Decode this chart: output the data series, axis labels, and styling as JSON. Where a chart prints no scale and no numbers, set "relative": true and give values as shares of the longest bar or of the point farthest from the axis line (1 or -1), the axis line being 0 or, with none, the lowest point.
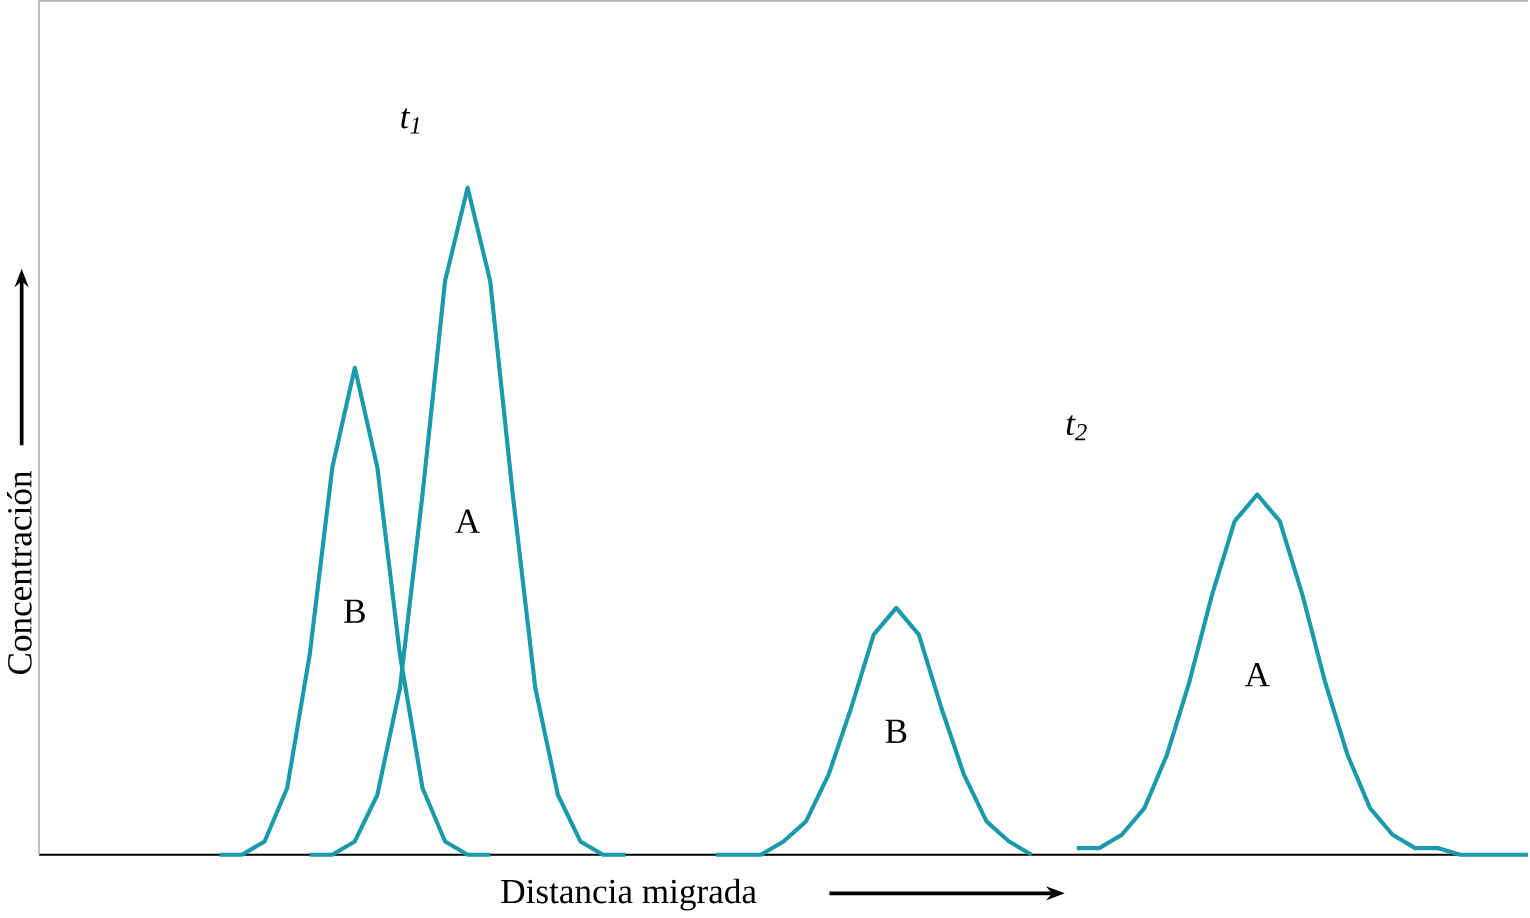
{
  "chart_data": {
    "type": "line",
    "relative": true,
    "xlabel": "Distancia migrada",
    "ylabel": "Concentración",
    "tick_labels": false,
    "marker": "none",
    "line_style": "solid",
    "annotations": [
      "t$_{1}$",
      "t$_{2}$"
    ],
    "categories": [
      null,
      null,
      null,
      null,
      null,
      null,
      null,
      null,
      null,
      null,
      null,
      null,
      null,
      null,
      null,
      null,
      null,
      null,
      null,
      null,
      null,
      null,
      null,
      null,
      null,
      null,
      null,
      null,
      null,
      null,
      null,
      null,
      null,
      null,
      null,
      null,
      null,
      null,
      null,
      null,
      null,
      null,
      null,
      null,
      null,
      null,
      null,
      null,
      null,
      null,
      null,
      null,
      null,
      null,
      null,
      null,
      null,
      null,
      null,
      null,
      null,
      null,
      null,
      null,
      null,
      null,
      null
    ],
    "series": [
      {
        "name": "B",
        "color": "#1a9aaa",
        "values": [
          null,
          null,
          null,
          null,
          null,
          null,
          null,
          null,
          0,
          0,
          0.02,
          0.1,
          0.3,
          0.58,
          0.73,
          0.58,
          0.3,
          0.1,
          0.02,
          0,
          0,
          null,
          null,
          null,
          null,
          null,
          null,
          null,
          null,
          null,
          null,
          null,
          null,
          null,
          null,
          null,
          null,
          null,
          null,
          null,
          null,
          null,
          null,
          null,
          null,
          null,
          null,
          null,
          null,
          null,
          null,
          null,
          null,
          null,
          null,
          null,
          null,
          null,
          null,
          null,
          null,
          null,
          null,
          null,
          null,
          null,
          null
        ]
      },
      {
        "name": "A",
        "color": "#1a9aaa",
        "values": [
          null,
          null,
          null,
          null,
          null,
          null,
          null,
          null,
          null,
          null,
          null,
          null,
          0,
          0,
          0.02,
          0.09,
          0.25,
          0.54,
          0.86,
          1,
          0.86,
          0.54,
          0.25,
          0.09,
          0.02,
          0,
          0,
          null,
          null,
          null,
          null,
          null,
          null,
          null,
          null,
          null,
          null,
          null,
          null,
          null,
          null,
          null,
          null,
          null,
          null,
          null,
          null,
          null,
          null,
          null,
          null,
          null,
          null,
          null,
          null,
          null,
          null,
          null,
          null,
          null,
          null,
          null,
          null,
          null,
          null,
          null,
          null
        ]
      },
      {
        "name": "B",
        "color": "#1a9aaa",
        "values": [
          null,
          null,
          null,
          null,
          null,
          null,
          null,
          null,
          null,
          null,
          null,
          null,
          null,
          null,
          null,
          null,
          null,
          null,
          null,
          null,
          null,
          null,
          null,
          null,
          null,
          null,
          null,
          null,
          null,
          null,
          0,
          0,
          0,
          0.02,
          0.05,
          0.12,
          0.22,
          0.33,
          0.37,
          0.33,
          0.22,
          0.12,
          0.05,
          0.02,
          0,
          null,
          null,
          null,
          null,
          null,
          null,
          null,
          null,
          null,
          null,
          null,
          null,
          null,
          null,
          null,
          null,
          null,
          null,
          null,
          null,
          null,
          null
        ]
      },
      {
        "name": "A",
        "color": "#1a9aaa",
        "values": [
          null,
          null,
          null,
          null,
          null,
          null,
          null,
          null,
          null,
          null,
          null,
          null,
          null,
          null,
          null,
          null,
          null,
          null,
          null,
          null,
          null,
          null,
          null,
          null,
          null,
          null,
          null,
          null,
          null,
          null,
          null,
          null,
          null,
          null,
          null,
          null,
          null,
          null,
          null,
          null,
          null,
          null,
          null,
          null,
          null,
          null,
          0.01,
          0.01,
          0.03,
          0.07,
          0.15,
          0.26,
          0.39,
          0.5,
          0.54,
          0.5,
          0.39,
          0.26,
          0.15,
          0.07,
          0.03,
          0.01,
          0.01,
          0,
          0,
          0,
          0
        ]
      }
    ]
  }
}
